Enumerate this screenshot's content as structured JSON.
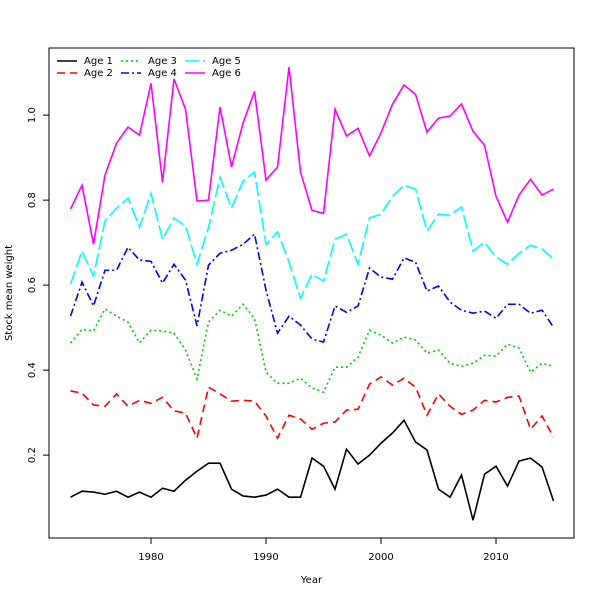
{
  "chart_data": {
    "type": "line",
    "x_label": "Year",
    "y_label": "Stock mean weight",
    "x": [
      1973,
      1974,
      1975,
      1976,
      1977,
      1978,
      1979,
      1980,
      1981,
      1982,
      1983,
      1984,
      1985,
      1986,
      1987,
      1988,
      1989,
      1990,
      1991,
      1992,
      1993,
      1994,
      1995,
      1996,
      1997,
      1998,
      1999,
      2000,
      2001,
      2002,
      2003,
      2004,
      2005,
      2006,
      2007,
      2008,
      2009,
      2010,
      2011,
      2012,
      2013,
      2014,
      2015
    ],
    "xlim": [
      1971.13,
      2016.78
    ],
    "xticks": [
      1980,
      1990,
      2000,
      2010
    ],
    "ylim": [
      0.005,
      1.158
    ],
    "yticks": [
      0.2,
      0.4,
      0.6,
      0.8,
      {
        "value": 1,
        "label": "1.0"
      }
    ],
    "legend": "top-left",
    "series": [
      {
        "name": "Age 1",
        "color": "#000000",
        "dash": "none",
        "values": [
          0.101,
          0.115,
          0.113,
          0.108,
          0.115,
          0.101,
          0.113,
          0.101,
          0.122,
          0.115,
          0.141,
          0.162,
          0.181,
          0.181,
          0.12,
          0.104,
          0.101,
          0.106,
          0.12,
          0.101,
          0.101,
          0.193,
          0.174,
          0.12,
          0.214,
          0.179,
          0.2,
          0.228,
          0.252,
          0.282,
          0.231,
          0.212,
          0.12,
          0.101,
          0.153,
          0.047,
          0.155,
          0.174,
          0.127,
          0.186,
          0.193,
          0.172,
          0.092
        ]
      },
      {
        "name": "Age 2",
        "color": "#ff0000",
        "dash": "8,5",
        "values": [
          0.351,
          0.346,
          0.318,
          0.315,
          0.344,
          0.315,
          0.329,
          0.322,
          0.336,
          0.304,
          0.299,
          0.24,
          0.36,
          0.344,
          0.327,
          0.329,
          0.327,
          0.292,
          0.24,
          0.294,
          0.285,
          0.261,
          0.275,
          0.278,
          0.306,
          0.308,
          0.367,
          0.384,
          0.365,
          0.381,
          0.36,
          0.294,
          0.344,
          0.315,
          0.296,
          0.306,
          0.329,
          0.325,
          0.336,
          0.339,
          0.261,
          0.292,
          0.242
        ]
      },
      {
        "name": "Age 3",
        "color": "#00cd00",
        "dash": "2,3",
        "values": [
          0.464,
          0.496,
          0.492,
          0.544,
          0.527,
          0.513,
          0.464,
          0.494,
          0.492,
          0.487,
          0.447,
          0.379,
          0.513,
          0.541,
          0.527,
          0.555,
          0.522,
          0.395,
          0.369,
          0.369,
          0.381,
          0.358,
          0.348,
          0.407,
          0.407,
          0.431,
          0.494,
          0.482,
          0.464,
          0.478,
          0.471,
          0.44,
          0.447,
          0.416,
          0.409,
          0.416,
          0.435,
          0.433,
          0.461,
          0.452,
          0.395,
          0.416,
          0.409
        ]
      },
      {
        "name": "Age 4",
        "color": "#0000ff",
        "dash": "8,3,2,3",
        "values": [
          0.527,
          0.607,
          0.551,
          0.635,
          0.635,
          0.689,
          0.659,
          0.656,
          0.605,
          0.649,
          0.612,
          0.504,
          0.647,
          0.675,
          0.682,
          0.696,
          0.72,
          0.588,
          0.487,
          0.527,
          0.506,
          0.473,
          0.466,
          0.551,
          0.536,
          0.551,
          0.64,
          0.619,
          0.614,
          0.664,
          0.654,
          0.586,
          0.598,
          0.56,
          0.541,
          0.534,
          0.539,
          0.522,
          0.555,
          0.555,
          0.534,
          0.541,
          0.501
        ]
      },
      {
        "name": "Age 5",
        "color": "#00ffff",
        "dash": "14,4",
        "values": [
          0.602,
          0.68,
          0.621,
          0.751,
          0.781,
          0.805,
          0.736,
          0.816,
          0.708,
          0.758,
          0.739,
          0.649,
          0.736,
          0.854,
          0.781,
          0.845,
          0.866,
          0.696,
          0.725,
          0.654,
          0.569,
          0.626,
          0.609,
          0.708,
          0.72,
          0.649,
          0.758,
          0.767,
          0.809,
          0.835,
          0.826,
          0.727,
          0.767,
          0.765,
          0.784,
          0.68,
          0.701,
          0.666,
          0.649,
          0.675,
          0.694,
          0.685,
          0.661
        ]
      },
      {
        "name": "Age 6",
        "color": "#ff00ff",
        "dash": "none",
        "values": [
          0.779,
          0.835,
          0.696,
          0.859,
          0.934,
          0.972,
          0.953,
          1.075,
          0.842,
          1.085,
          1.014,
          0.798,
          0.8,
          1.019,
          0.878,
          0.981,
          1.056,
          0.847,
          0.878,
          1.113,
          0.866,
          0.776,
          0.769,
          1.014,
          0.951,
          0.969,
          0.904,
          0.958,
          1.026,
          1.071,
          1.049,
          0.96,
          0.993,
          0.998,
          1.026,
          0.962,
          0.929,
          0.809,
          0.748,
          0.812,
          0.849,
          0.812,
          0.826
        ]
      }
    ]
  }
}
